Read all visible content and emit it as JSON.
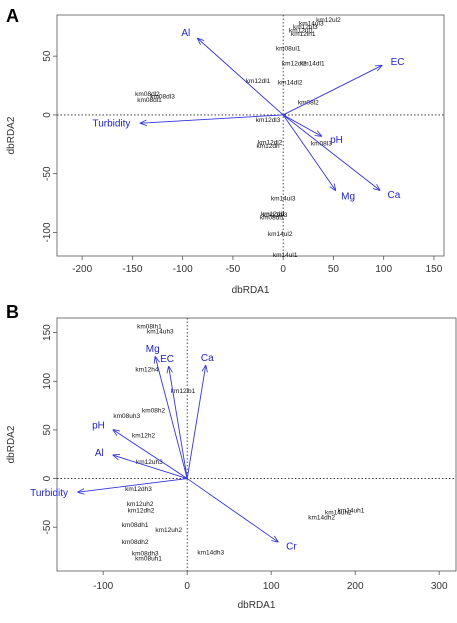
{
  "chart_data": [
    {
      "panel": "A",
      "type": "scatter",
      "xlabel": "dbRDA1",
      "ylabel": "dbRDA2",
      "xlim": [
        -225,
        160
      ],
      "ylim": [
        -120,
        85
      ],
      "xticks": [
        -200,
        -150,
        -100,
        -50,
        0,
        50,
        100,
        150
      ],
      "yticks": [
        -100,
        -50,
        0,
        50
      ],
      "reference_lines": {
        "x": 0,
        "y": 0,
        "style": "dotted"
      },
      "vector_color": "#3333dd",
      "vectors": [
        {
          "name": "Al",
          "x": -85,
          "y": 65
        },
        {
          "name": "EC",
          "x": 98,
          "y": 42
        },
        {
          "name": "Turbidity",
          "x": -142,
          "y": -7
        },
        {
          "name": "pH",
          "x": 38,
          "y": -18
        },
        {
          "name": "Mg",
          "x": 52,
          "y": -64
        },
        {
          "name": "Ca",
          "x": 96,
          "y": -64
        }
      ],
      "sites": [
        {
          "label": "km12ul2",
          "x": 45,
          "y": 79
        },
        {
          "label": "km14ul3",
          "x": 28,
          "y": 76
        },
        {
          "label": "km12ul3",
          "x": 22,
          "y": 73
        },
        {
          "label": "km12ul1",
          "x": 18,
          "y": 70
        },
        {
          "label": "km12lh1",
          "x": 20,
          "y": 67
        },
        {
          "label": "km08ul1",
          "x": 5,
          "y": 55
        },
        {
          "label": "km12dl2",
          "x": 11,
          "y": 42
        },
        {
          "label": "km14dl1",
          "x": 29,
          "y": 42
        },
        {
          "label": "km12dl1",
          "x": -25,
          "y": 27
        },
        {
          "label": "km14dl2",
          "x": 7,
          "y": 26
        },
        {
          "label": "km08dl2",
          "x": -135,
          "y": 16
        },
        {
          "label": "km08dl3",
          "x": -120,
          "y": 14
        },
        {
          "label": "km08dl1",
          "x": -133,
          "y": 11
        },
        {
          "label": "km08l2",
          "x": 25,
          "y": 9
        },
        {
          "label": "km12dl3",
          "x": -15,
          "y": -6
        },
        {
          "label": "km08l3",
          "x": 38,
          "y": -26
        },
        {
          "label": "km12dl2",
          "x": -13,
          "y": -25
        },
        {
          "label": "km12dh",
          "x": -15,
          "y": -28
        },
        {
          "label": "km14ul3",
          "x": 0,
          "y": -73
        },
        {
          "label": "km12dl1",
          "x": -10,
          "y": -86
        },
        {
          "label": "km12dl3",
          "x": -8,
          "y": -87
        },
        {
          "label": "km08dl1",
          "x": -11,
          "y": -89
        },
        {
          "label": "km14ul2",
          "x": -3,
          "y": -103
        },
        {
          "label": "km14ul1",
          "x": 2,
          "y": -121
        }
      ]
    },
    {
      "panel": "B",
      "type": "scatter",
      "xlabel": "dbRDA1",
      "ylabel": "dbRDA2",
      "xlim": [
        -155,
        320
      ],
      "ylim": [
        -95,
        165
      ],
      "xticks": [
        -100,
        0,
        100,
        200,
        300
      ],
      "yticks": [
        -50,
        0,
        50,
        100,
        150
      ],
      "reference_lines": {
        "x": 0,
        "y": 0,
        "style": "dotted"
      },
      "vector_color": "#3333dd",
      "vectors": [
        {
          "name": "Mg",
          "x": -38,
          "y": 125
        },
        {
          "name": "EC",
          "x": -22,
          "y": 115
        },
        {
          "name": "Ca",
          "x": 22,
          "y": 116
        },
        {
          "name": "pH",
          "x": -88,
          "y": 50
        },
        {
          "name": "Al",
          "x": -88,
          "y": 24
        },
        {
          "name": "Turbidity",
          "x": -130,
          "y": -14
        },
        {
          "name": "Cr",
          "x": 108,
          "y": -65
        }
      ],
      "sites": [
        {
          "label": "km08lh1",
          "x": -45,
          "y": 154
        },
        {
          "label": "km14uh3",
          "x": -32,
          "y": 149
        },
        {
          "label": "km12h4",
          "x": -48,
          "y": 110
        },
        {
          "label": "km12ib1",
          "x": -5,
          "y": 88
        },
        {
          "label": "km08h2",
          "x": -40,
          "y": 68
        },
        {
          "label": "km08uh3",
          "x": -72,
          "y": 62
        },
        {
          "label": "km12h2",
          "x": -52,
          "y": 42
        },
        {
          "label": "km12uh3",
          "x": -45,
          "y": 15
        },
        {
          "label": "km12dh3",
          "x": -58,
          "y": -13
        },
        {
          "label": "km12uh2",
          "x": -56,
          "y": -28
        },
        {
          "label": "km12dh2",
          "x": -55,
          "y": -35
        },
        {
          "label": "km08dh1",
          "x": -62,
          "y": -50
        },
        {
          "label": "km12uh2",
          "x": -22,
          "y": -55
        },
        {
          "label": "km08dh2",
          "x": -62,
          "y": -67
        },
        {
          "label": "km08dh3",
          "x": -50,
          "y": -79
        },
        {
          "label": "km08uh1",
          "x": -46,
          "y": -84
        },
        {
          "label": "km14dh3",
          "x": 28,
          "y": -78
        },
        {
          "label": "km14dh2",
          "x": 160,
          "y": -42
        },
        {
          "label": "km14uh2",
          "x": 180,
          "y": -37
        },
        {
          "label": "km14uh1",
          "x": 195,
          "y": -35
        }
      ]
    }
  ],
  "panels_text": {
    "A": {
      "letter": "A"
    },
    "B": {
      "letter": "B"
    }
  }
}
